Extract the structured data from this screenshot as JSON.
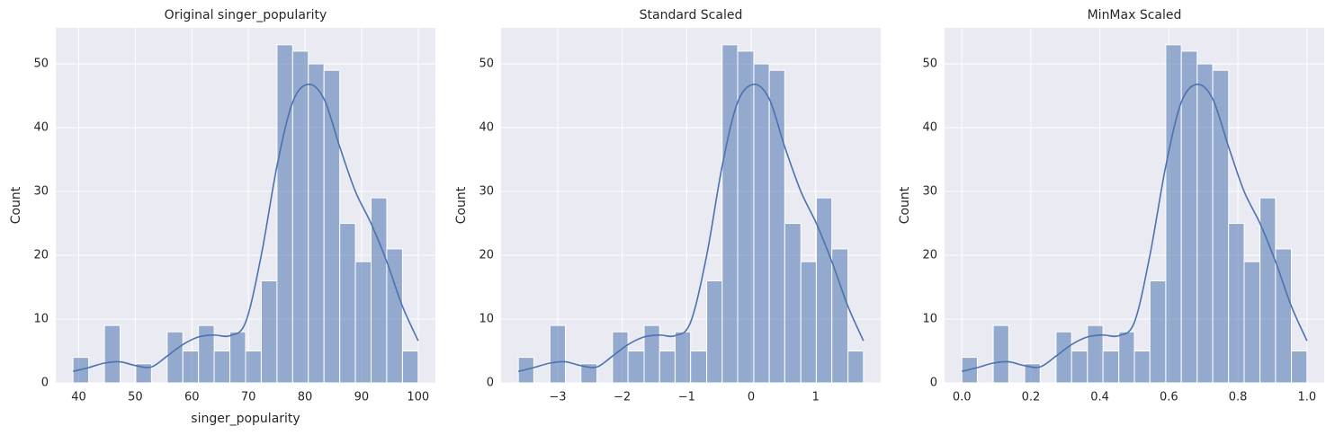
{
  "chart_data": [
    {
      "type": "histogram",
      "title": "Original singer_popularity",
      "xlabel": "singer_popularity",
      "ylabel": "Count",
      "bins": [
        39,
        41.77,
        44.55,
        47.32,
        50.09,
        52.86,
        55.64,
        58.41,
        61.18,
        63.95,
        66.73,
        69.5,
        72.27,
        75.05,
        77.82,
        80.59,
        83.36,
        86.14,
        88.91,
        91.68,
        94.45,
        97.23,
        100
      ],
      "values": [
        4,
        0,
        9,
        0,
        3,
        0,
        8,
        5,
        9,
        5,
        8,
        5,
        16,
        53,
        52,
        50,
        49,
        25,
        19,
        29,
        21,
        5
      ],
      "kde_values": [
        1.8,
        2.4,
        3.1,
        3.3,
        2.7,
        2.5,
        4.2,
        6.0,
        7.2,
        7.5,
        7.4,
        9.5,
        20,
        34,
        44,
        46.8,
        44.5,
        37,
        30,
        25,
        19,
        12,
        6.6
      ],
      "color": "#4c72b0",
      "xlim": [
        35.95,
        103.05
      ],
      "ylim": [
        0,
        55.65
      ],
      "xticks": [
        40,
        50,
        60,
        70,
        80,
        90,
        100
      ],
      "yticks": [
        0,
        10,
        20,
        30,
        40,
        50
      ],
      "grid": true
    },
    {
      "type": "histogram",
      "title": "Standard Scaled",
      "ylabel": "Count",
      "bins": [
        -3.61,
        -3.37,
        -3.12,
        -2.88,
        -2.64,
        -2.39,
        -2.15,
        -1.91,
        -1.66,
        -1.42,
        -1.18,
        -0.94,
        -0.69,
        -0.45,
        -0.21,
        0.04,
        0.28,
        0.52,
        0.77,
        1.01,
        1.25,
        1.5,
        1.74
      ],
      "values": [
        4,
        0,
        9,
        0,
        3,
        0,
        8,
        5,
        9,
        5,
        8,
        5,
        16,
        53,
        52,
        50,
        49,
        25,
        19,
        29,
        21,
        5
      ],
      "kde_values": [
        1.8,
        2.4,
        3.1,
        3.3,
        2.7,
        2.5,
        4.2,
        6.0,
        7.2,
        7.5,
        7.4,
        9.5,
        20,
        34,
        44,
        46.8,
        44.5,
        37,
        30,
        25,
        19,
        12,
        6.6
      ],
      "color": "#4c72b0",
      "xlim": [
        -3.8775,
        2.0075
      ],
      "ylim": [
        0,
        55.65
      ],
      "xticks": [
        {
          "value": -3,
          "label": "−3"
        },
        {
          "value": -2,
          "label": "−2"
        },
        {
          "value": -1,
          "label": "−1"
        },
        0,
        1
      ],
      "yticks": [
        0,
        10,
        20,
        30,
        40,
        50
      ],
      "grid": true
    },
    {
      "type": "histogram",
      "title": "MinMax Scaled",
      "ylabel": "Count",
      "bins": [
        0,
        0.045,
        0.091,
        0.136,
        0.182,
        0.227,
        0.273,
        0.318,
        0.364,
        0.409,
        0.455,
        0.5,
        0.545,
        0.591,
        0.636,
        0.682,
        0.727,
        0.773,
        0.818,
        0.864,
        0.909,
        0.955,
        1
      ],
      "values": [
        4,
        0,
        9,
        0,
        3,
        0,
        8,
        5,
        9,
        5,
        8,
        5,
        16,
        53,
        52,
        50,
        49,
        25,
        19,
        29,
        21,
        5
      ],
      "kde_values": [
        1.8,
        2.4,
        3.1,
        3.3,
        2.7,
        2.5,
        4.2,
        6.0,
        7.2,
        7.5,
        7.4,
        9.5,
        20,
        34,
        44,
        46.8,
        44.5,
        37,
        30,
        25,
        19,
        12,
        6.6
      ],
      "color": "#4c72b0",
      "xlim": [
        -0.05,
        1.05
      ],
      "ylim": [
        0,
        55.65
      ],
      "xticks": [
        {
          "value": 0,
          "label": "0.0"
        },
        0.2,
        0.4,
        0.6,
        0.8,
        {
          "value": 1,
          "label": "1.0"
        }
      ],
      "yticks": [
        0,
        10,
        20,
        30,
        40,
        50
      ],
      "grid": true
    }
  ]
}
